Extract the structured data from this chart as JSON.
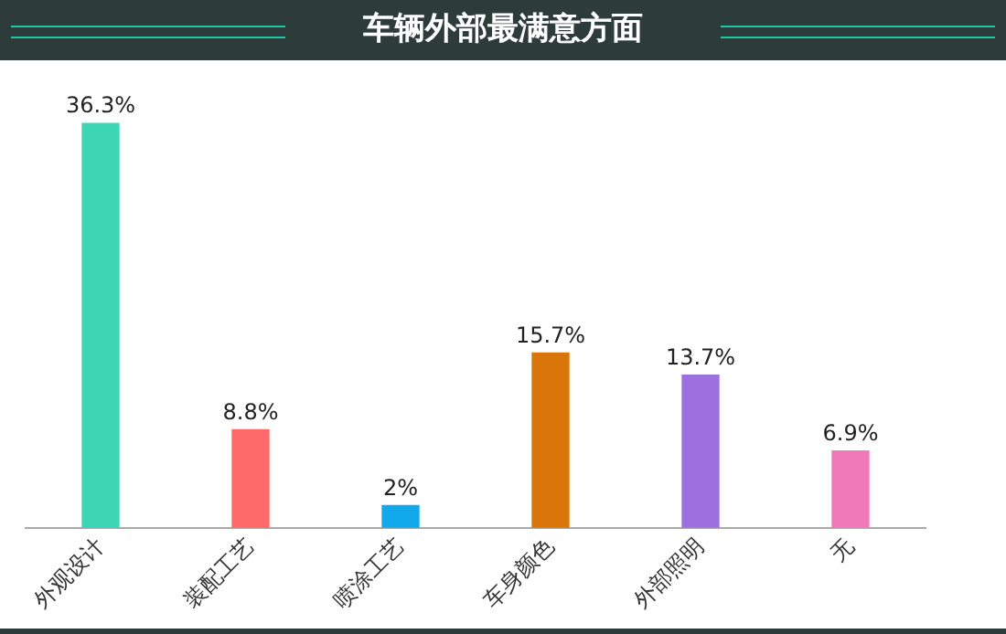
{
  "chart_data": {
    "type": "bar",
    "title": "车辆外部最满意方面",
    "categories": [
      "外观设计",
      "装配工艺",
      "喷涂工艺",
      "车身颜色",
      "外部照明",
      "无"
    ],
    "values": [
      36.3,
      8.8,
      2,
      15.7,
      13.7,
      6.9
    ],
    "colors": [
      "#3dd6b4",
      "#fe6a6a",
      "#12a9ea",
      "#d9760a",
      "#9d70e0",
      "#f07ab9"
    ],
    "value_labels": [
      "36.3%",
      "8.8%",
      "2%",
      "15.7%",
      "13.7%",
      "6.9%"
    ],
    "grid": false,
    "legend": false
  }
}
